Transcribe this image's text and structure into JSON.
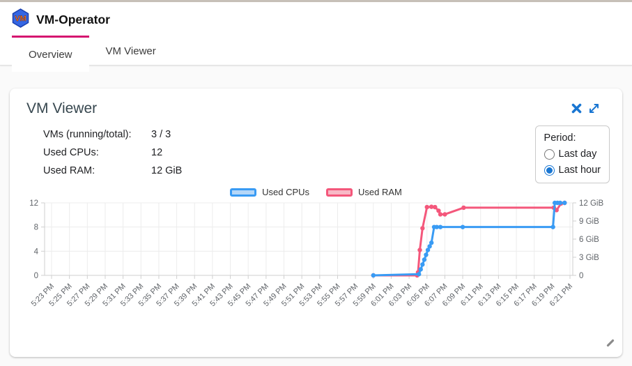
{
  "header": {
    "title": "VM-Operator",
    "logo_text": "VM"
  },
  "tabs": [
    {
      "label": "Overview",
      "active": true
    },
    {
      "label": "VM Viewer",
      "active": false
    }
  ],
  "card": {
    "title": "VM Viewer",
    "stats": [
      {
        "label": "VMs (running/total):",
        "value": "3 / 3"
      },
      {
        "label": "Used CPUs:",
        "value": "12"
      },
      {
        "label": "Used RAM:",
        "value": "12 GiB"
      }
    ],
    "period": {
      "label": "Period:",
      "options": [
        {
          "label": "Last day",
          "checked": false
        },
        {
          "label": "Last hour",
          "checked": true
        }
      ]
    }
  },
  "icons": {
    "close": "x-cross",
    "expand": "diagonal-double-arrow",
    "resize_grip": "diagonal-line"
  },
  "colors": {
    "accent_blue": "#1976d2",
    "tab_indicator": "#d5136f",
    "cpu_line": "#399bf4",
    "ram_line": "#f4577b"
  },
  "chart_data": {
    "type": "line",
    "line_style": "sampled-steps-with-point-markers",
    "legend_position": "top",
    "grid": true,
    "x_description": "points are [minutes after 5:23 PM, value]; ticks every 2 minutes",
    "x_tick_labels": [
      "5:23 PM",
      "5:25 PM",
      "5:27 PM",
      "5:29 PM",
      "5:31 PM",
      "5:33 PM",
      "5:35 PM",
      "5:37 PM",
      "5:39 PM",
      "5:41 PM",
      "5:43 PM",
      "5:45 PM",
      "5:47 PM",
      "5:49 PM",
      "5:51 PM",
      "5:53 PM",
      "5:55 PM",
      "5:57 PM",
      "5:59 PM",
      "6:01 PM",
      "6:03 PM",
      "6:05 PM",
      "6:07 PM",
      "6:09 PM",
      "6:11 PM",
      "6:13 PM",
      "6:15 PM",
      "6:17 PM",
      "6:19 PM",
      "6:21 PM"
    ],
    "x_range_minutes": [
      0,
      58
    ],
    "y_left": {
      "ticks": [
        0,
        4,
        8,
        12
      ],
      "range": [
        0,
        12
      ]
    },
    "y_right": {
      "tick_values": [
        0,
        3,
        6,
        9,
        12
      ],
      "tick_labels": [
        "0",
        "3 GiB",
        "6 GiB",
        "9 GiB",
        "12 GiB"
      ],
      "range": [
        0,
        12
      ]
    },
    "series": [
      {
        "name": "Used RAM",
        "axis": "right",
        "color": "#f4577b",
        "legend_fill": "#f8b9c6",
        "points": [
          [
            36,
            0
          ],
          [
            40.9,
            0
          ],
          [
            41.0,
            0.5
          ],
          [
            41.2,
            4.2
          ],
          [
            41.5,
            7.8
          ],
          [
            42.0,
            11.3
          ],
          [
            42.5,
            11.35
          ],
          [
            42.9,
            11.3
          ],
          [
            43.3,
            10.7
          ],
          [
            43.5,
            10.1
          ],
          [
            44.0,
            10.1
          ],
          [
            46.1,
            11.2
          ],
          [
            56.2,
            11.2
          ],
          [
            56.5,
            10.8
          ],
          [
            57.0,
            11.9
          ],
          [
            57.4,
            12
          ]
        ]
      },
      {
        "name": "Used CPUs",
        "axis": "left",
        "color": "#399bf4",
        "legend_fill": "#b5d7f8",
        "points": [
          [
            36,
            0
          ],
          [
            41.1,
            0.2
          ],
          [
            41.3,
            1
          ],
          [
            41.5,
            1.8
          ],
          [
            41.7,
            2.6
          ],
          [
            41.9,
            3.4
          ],
          [
            42.1,
            4.2
          ],
          [
            42.3,
            4.8
          ],
          [
            42.5,
            5.4
          ],
          [
            42.8,
            8
          ],
          [
            43.1,
            8
          ],
          [
            43.5,
            8
          ],
          [
            46,
            8
          ],
          [
            56.1,
            8
          ],
          [
            56.3,
            12
          ],
          [
            56.6,
            12
          ],
          [
            56.9,
            12
          ],
          [
            57.4,
            12
          ]
        ]
      }
    ],
    "legend_order": [
      "Used CPUs",
      "Used RAM"
    ]
  }
}
